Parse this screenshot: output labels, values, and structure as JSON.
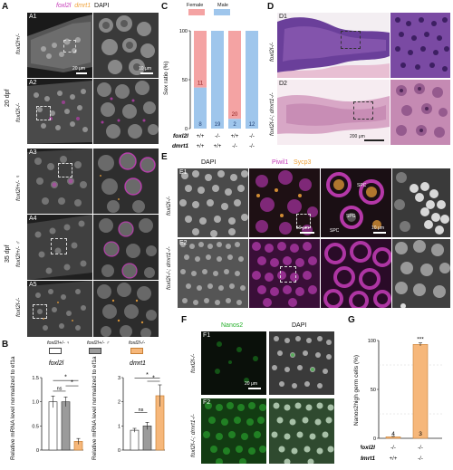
{
  "panelA": {
    "letter": "A",
    "header": {
      "ch1": "foxl2l",
      "ch2": "dmrt1",
      "ch3": "DAPI"
    },
    "group1": "20 dpf",
    "group2": "35 dpf",
    "rows": [
      {
        "tag": "A1",
        "genotype": "foxl2l+/-",
        "scale_left": "20 μm",
        "scale_right": "10 μm"
      },
      {
        "tag": "A2",
        "genotype": "foxl2l-/-"
      },
      {
        "tag": "A3",
        "genotype": "foxl2l+/- ♀"
      },
      {
        "tag": "A4",
        "genotype": "foxl2l+/- ♂"
      },
      {
        "tag": "A5",
        "genotype": "foxl2l-/-"
      }
    ]
  },
  "panelB": {
    "letter": "B",
    "legend": [
      "foxl2l+/- ♀",
      "foxl2l+/- ♂",
      "foxl2l-/-"
    ],
    "ylabel": "Relative mRNA level normalized to ef1a",
    "ns": "ns",
    "star": "*"
  },
  "panelC": {
    "letter": "C",
    "legend": [
      "Female",
      "Male"
    ],
    "ylabel": "Sex ratio (%)",
    "row_labels": [
      "foxl2l",
      "dmrt1"
    ],
    "foxl2l_row": [
      "+/+",
      "-/-",
      "+/+",
      "-/-"
    ],
    "dmrt1_row": [
      "+/+",
      "+/+",
      "-/-",
      "-/-"
    ]
  },
  "panelD": {
    "letter": "D",
    "tags": [
      "D1",
      "D2"
    ],
    "genotypes": [
      "foxl2l-/-",
      "foxl2l-/-; dmrt1-/-"
    ],
    "scale": "200 μm"
  },
  "panelE": {
    "letter": "E",
    "headers": [
      "DAPI",
      "Piwil1",
      "Sycp3"
    ],
    "tags": [
      "E1",
      "E2"
    ],
    "genotypes": [
      "foxl2l-/-",
      "foxl2l-/-; dmrt1-/-"
    ],
    "cell_labels": [
      "SPC",
      "SPG",
      "SPC"
    ],
    "scale_left": "50 μm",
    "scale_right": "10 μm"
  },
  "panelF": {
    "letter": "F",
    "headers": [
      "Nanos2",
      "DAPI"
    ],
    "tags": [
      "F1",
      "F2"
    ],
    "genotypes": [
      "foxl2l-/-",
      "foxl2l-/-; dmrt1-/-"
    ],
    "scale": "20 μm"
  },
  "panelG": {
    "letter": "G",
    "ylabel": "Nanos2high germ cells (%)",
    "row_labels": [
      "foxl2l",
      "dmrt1"
    ],
    "foxl2l_row": [
      "-/-",
      "-/-"
    ],
    "dmrt1_row": [
      "+/+",
      "-/-"
    ],
    "sig": "***"
  },
  "colors": {
    "magenta": "#c63db9",
    "orange": "#f0a23a",
    "female": "#f4a3a3",
    "male": "#9fc6ec",
    "green": "#27b02c",
    "he_purple": "#6a3f9a",
    "he_pink": "#e8bfd3"
  },
  "chart_data": [
    {
      "type": "bar",
      "title": "foxl2l",
      "ylabel": "Relative mRNA level normalized to ef1a",
      "categories": [
        "foxl2l+/- ♀",
        "foxl2l+/- ♂",
        "foxl2l-/-"
      ],
      "values": [
        1.0,
        1.0,
        0.18
      ],
      "errors": [
        0.12,
        0.1,
        0.06
      ],
      "ylim": [
        0,
        1.5
      ],
      "yticks": [
        "0",
        "0.5",
        "1.0",
        "1.5"
      ]
    },
    {
      "type": "bar",
      "title": "dmrt1",
      "ylabel": "Relative mRNA level normalized to ef1a",
      "categories": [
        "foxl2l+/- ♀",
        "foxl2l+/- ♂",
        "foxl2l-/-"
      ],
      "values": [
        0.82,
        1.0,
        2.25
      ],
      "errors": [
        0.08,
        0.15,
        0.45
      ],
      "ylim": [
        0,
        3
      ],
      "yticks": [
        "0",
        "1",
        "2",
        "3"
      ]
    },
    {
      "type": "bar",
      "stacked": true,
      "title": "",
      "ylabel": "Sex ratio (%)",
      "ylim": [
        0,
        100
      ],
      "yticks": [
        "0",
        "50",
        "100"
      ],
      "categories": [
        "foxl2l +/+ dmrt1 +/+",
        "foxl2l -/- dmrt1 +/+",
        "foxl2l +/+ dmrt1 -/-",
        "foxl2l -/- dmrt1 -/-"
      ],
      "series": [
        {
          "name": "Male",
          "values": [
            42,
            100,
            10,
            100
          ],
          "counts": [
            "8",
            "19",
            "2",
            "12"
          ]
        },
        {
          "name": "Female",
          "values": [
            58,
            0,
            90,
            0
          ],
          "counts": [
            "11",
            "",
            "20",
            ""
          ]
        }
      ]
    },
    {
      "type": "bar",
      "title": "",
      "ylabel": "Nanos2high germ cells (%)",
      "ylim": [
        0,
        100
      ],
      "yticks": [
        "0",
        "50",
        "100"
      ],
      "categories": [
        "foxl2l -/- dmrt1 +/+",
        "foxl2l -/- dmrt1 -/-"
      ],
      "values": [
        1.5,
        96
      ],
      "errors": [
        0.5,
        1.5
      ],
      "counts": [
        "4",
        "3"
      ]
    }
  ]
}
